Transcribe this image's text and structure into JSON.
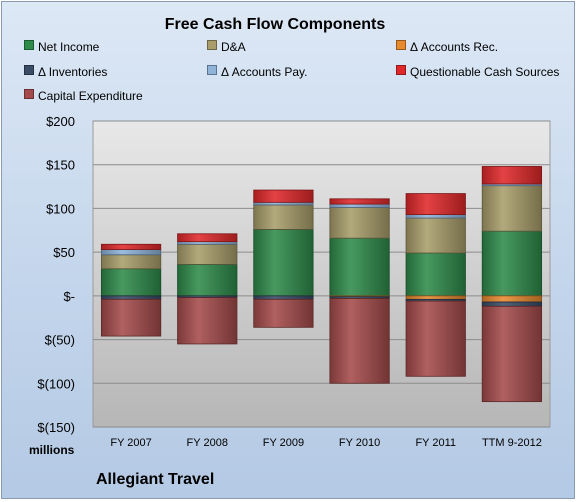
{
  "chart_data": {
    "type": "bar",
    "stacked": true,
    "title": "Free Cash Flow Components",
    "units_label": "millions",
    "company": "Allegiant Travel",
    "categories": [
      "FY 2007",
      "FY 2008",
      "FY 2009",
      "FY 2010",
      "FY 2011",
      "TTM 9-2012"
    ],
    "y_tick_labels": [
      "$200",
      "$150",
      "$100",
      "$50",
      "$-",
      "$(50)",
      "$(100)",
      "$(150)"
    ],
    "y_tick_values": [
      200,
      150,
      100,
      50,
      0,
      -50,
      -100,
      -150
    ],
    "ylim": [
      -150,
      200
    ],
    "grid": true,
    "legend_position": "top",
    "series": [
      {
        "name": "Net Income",
        "color": "#2e8b4a",
        "values": [
          31,
          36,
          76,
          66,
          49,
          74
        ]
      },
      {
        "name": "D&A",
        "color": "#a89d6a",
        "values": [
          16,
          23,
          28,
          35,
          40,
          52
        ]
      },
      {
        "name": "Δ Accounts Rec.",
        "color": "#e88a2e",
        "values": [
          0,
          0,
          0,
          -1,
          -4,
          -7
        ]
      },
      {
        "name": "Δ Inventories",
        "color": "#3a4c66",
        "values": [
          -4,
          -2,
          -4,
          -2,
          -2,
          -5
        ]
      },
      {
        "name": "Δ Accounts Pay.",
        "color": "#8fb3d9",
        "values": [
          6,
          3,
          3,
          4,
          4,
          2
        ]
      },
      {
        "name": "Questionable Cash Sources",
        "color": "#e0282a",
        "values": [
          6,
          9,
          14,
          6,
          24,
          20
        ]
      },
      {
        "name": "Capital Expenditure",
        "color": "#a54a4a",
        "values": [
          -42,
          -53,
          -32,
          -97,
          -86,
          -109
        ]
      }
    ]
  }
}
